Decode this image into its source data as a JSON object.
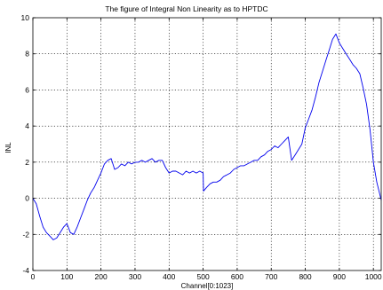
{
  "chart_data": {
    "type": "line",
    "title": "The figure of Integral Non Linearity as to HPTDC",
    "xlabel": "Channel[0:1023]",
    "ylabel": "INL",
    "xlim": [
      0,
      1023
    ],
    "ylim": [
      -4,
      10
    ],
    "x_ticks": [
      0,
      100,
      200,
      300,
      400,
      500,
      600,
      700,
      800,
      900,
      1000
    ],
    "y_ticks": [
      -4,
      -2,
      0,
      2,
      4,
      6,
      8,
      10
    ],
    "x_tick_labels": [
      "0",
      "100",
      "200",
      "300",
      "400",
      "500",
      "600",
      "700",
      "800",
      "900",
      "1000"
    ],
    "y_tick_labels": [
      "-4",
      "-2",
      "0",
      "2",
      "4",
      "6",
      "8",
      "10"
    ],
    "grid": true,
    "line_color": "#0000ee",
    "series": [
      {
        "x": [
          0,
          10,
          20,
          30,
          40,
          50,
          60,
          70,
          80,
          90,
          100,
          110,
          120,
          130,
          140,
          150,
          160,
          170,
          180,
          190,
          200,
          210,
          220,
          230,
          240,
          250,
          260,
          270,
          280,
          290,
          300,
          310,
          320,
          330,
          340,
          350,
          360,
          370,
          380,
          390,
          400,
          410,
          420,
          430,
          440,
          450,
          460,
          470,
          480,
          490,
          500,
          501,
          510,
          520,
          530,
          540,
          550,
          560,
          570,
          580,
          590,
          600,
          610,
          620,
          630,
          640,
          650,
          660,
          670,
          680,
          690,
          700,
          710,
          720,
          730,
          740,
          750,
          760,
          770,
          780,
          790,
          800,
          810,
          820,
          830,
          840,
          850,
          860,
          870,
          880,
          890,
          900,
          910,
          920,
          930,
          940,
          950,
          960,
          970,
          980,
          990,
          1000,
          1010,
          1023
        ],
        "y": [
          0.0,
          -0.3,
          -1.0,
          -1.6,
          -1.9,
          -2.1,
          -2.3,
          -2.2,
          -1.9,
          -1.6,
          -1.4,
          -1.9,
          -2.0,
          -1.6,
          -1.1,
          -0.6,
          -0.1,
          0.3,
          0.6,
          1.0,
          1.4,
          1.9,
          2.1,
          2.2,
          1.6,
          1.7,
          1.9,
          1.8,
          2.0,
          1.9,
          2.0,
          2.0,
          2.1,
          2.0,
          2.1,
          2.2,
          2.0,
          2.1,
          2.1,
          1.7,
          1.4,
          1.5,
          1.5,
          1.4,
          1.3,
          1.5,
          1.4,
          1.5,
          1.4,
          1.5,
          1.4,
          0.4,
          0.6,
          0.8,
          0.9,
          0.9,
          1.0,
          1.2,
          1.3,
          1.4,
          1.6,
          1.7,
          1.8,
          1.8,
          1.9,
          2.0,
          2.1,
          2.1,
          2.3,
          2.4,
          2.6,
          2.7,
          2.9,
          2.8,
          3.0,
          3.2,
          3.4,
          2.1,
          2.4,
          2.7,
          3.0,
          3.9,
          4.4,
          4.9,
          5.6,
          6.4,
          7.0,
          7.6,
          8.2,
          8.8,
          9.1,
          8.6,
          8.3,
          8.0,
          7.7,
          7.4,
          7.2,
          6.9,
          6.1,
          5.2,
          3.8,
          2.0,
          0.9,
          -0.1
        ]
      }
    ]
  }
}
